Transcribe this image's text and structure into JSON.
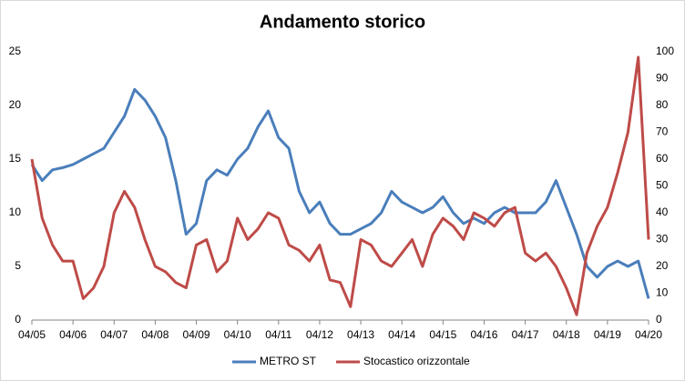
{
  "chart_data": {
    "type": "line",
    "title": "Andamento storico",
    "categories": [
      "04/05",
      null,
      null,
      null,
      "04/06",
      null,
      null,
      null,
      "04/07",
      null,
      null,
      null,
      "04/08",
      null,
      null,
      null,
      "04/09",
      null,
      null,
      null,
      "04/10",
      null,
      null,
      null,
      "04/11",
      null,
      null,
      null,
      "04/12",
      null,
      null,
      null,
      "04/13",
      null,
      null,
      null,
      "04/14",
      null,
      null,
      null,
      "04/15",
      null,
      null,
      null,
      "04/16",
      null,
      null,
      null,
      "04/17",
      null,
      null,
      null,
      "04/18",
      null,
      null,
      null,
      "04/19",
      null,
      null,
      null,
      "04/20"
    ],
    "series": [
      {
        "name": "METRO ST",
        "color": "#4a7ebb",
        "values": [
          14.5,
          13,
          14,
          14.2,
          14.5,
          15,
          15.5,
          16,
          17.5,
          19,
          21.5,
          20.5,
          19,
          17,
          13,
          8,
          9,
          13,
          14,
          13.5,
          15,
          16,
          18,
          19.5,
          17,
          16,
          12,
          10,
          11,
          9,
          8,
          8,
          8.5,
          9,
          10,
          12,
          11,
          10.5,
          10,
          10.5,
          11.5,
          10,
          9,
          9.5,
          9,
          10,
          10.5,
          10,
          10,
          10,
          11,
          13,
          10.5,
          8,
          5,
          4,
          5,
          5.5,
          5,
          5.5,
          2
        ]
      },
      {
        "name": "Stocastico orizzontale",
        "color": "#be4b48",
        "axis": "y2",
        "values": [
          60,
          38,
          28,
          22,
          22,
          8,
          12,
          20,
          40,
          48,
          42,
          30,
          20,
          18,
          14,
          12,
          28,
          30,
          18,
          22,
          38,
          30,
          34,
          40,
          38,
          28,
          26,
          22,
          28,
          15,
          14,
          5,
          30,
          28,
          22,
          20,
          25,
          30,
          20,
          32,
          38,
          35,
          30,
          40,
          38,
          35,
          40,
          42,
          25,
          22,
          25,
          20,
          12,
          2,
          25,
          35,
          42,
          55,
          70,
          98,
          30
        ]
      }
    ],
    "ylim": [
      0,
      25
    ],
    "yticks": [
      0,
      5,
      10,
      15,
      20,
      25
    ],
    "y2lim": [
      0,
      100
    ],
    "y2ticks": [
      0,
      10,
      20,
      30,
      40,
      50,
      60,
      70,
      80,
      90,
      100
    ],
    "legend": "bottom"
  }
}
